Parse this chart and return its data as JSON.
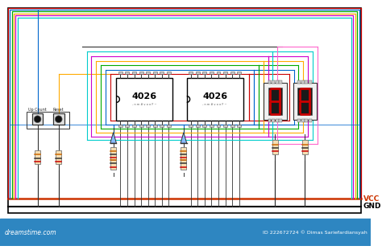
{
  "bg_color": "#ffffff",
  "border_color": "#000000",
  "vcc_color": "#cc3300",
  "gnd_color": "#000000",
  "ic_fill": "#ffffff",
  "ic_border": "#000000",
  "seg_digit_color": "#cc0000",
  "seg_bg_color": "#1a1a1a",
  "seg_pkg_color": "#f0f0f0",
  "res_body_color": "#f5deb3",
  "res_band1": "#cc0000",
  "res_band2": "#333333",
  "res_band3": "#cc6600",
  "btn_outer": "#e0e0e0",
  "btn_inner": "#111111",
  "pin_color": "#cccccc",
  "wire_dark": "#333333",
  "footer_color": "#2e86c1",
  "footer_text_color": "#ffffff",
  "vcc_label": "VCC",
  "gnd_label": "GND",
  "ic1_label": "4026",
  "ic2_label": "4026",
  "upcount_label": "Up Count",
  "reset_label": "Reset",
  "watermark": "dreamstime.com",
  "id_text": "ID 222672724 © Dimas Sariefardiansyah",
  "loop_colors": [
    "#cc0000",
    "#0066cc",
    "#00aa00",
    "#ffaa00",
    "#cc00cc",
    "#00cccc",
    "#ff66cc",
    "#99cc00"
  ],
  "seg_wire_colors": [
    "#cc0000",
    "#0066cc",
    "#00aa00",
    "#ffaa00",
    "#cc00cc",
    "#00cccc",
    "#ff66cc"
  ],
  "perimeter_colors": [
    "#cc0000",
    "#0066cc",
    "#00aa00",
    "#ffaa00",
    "#cc00cc",
    "#00cccc"
  ],
  "led_color": "#88bbff",
  "fig_w": 4.74,
  "fig_h": 3.11,
  "dpi": 100
}
